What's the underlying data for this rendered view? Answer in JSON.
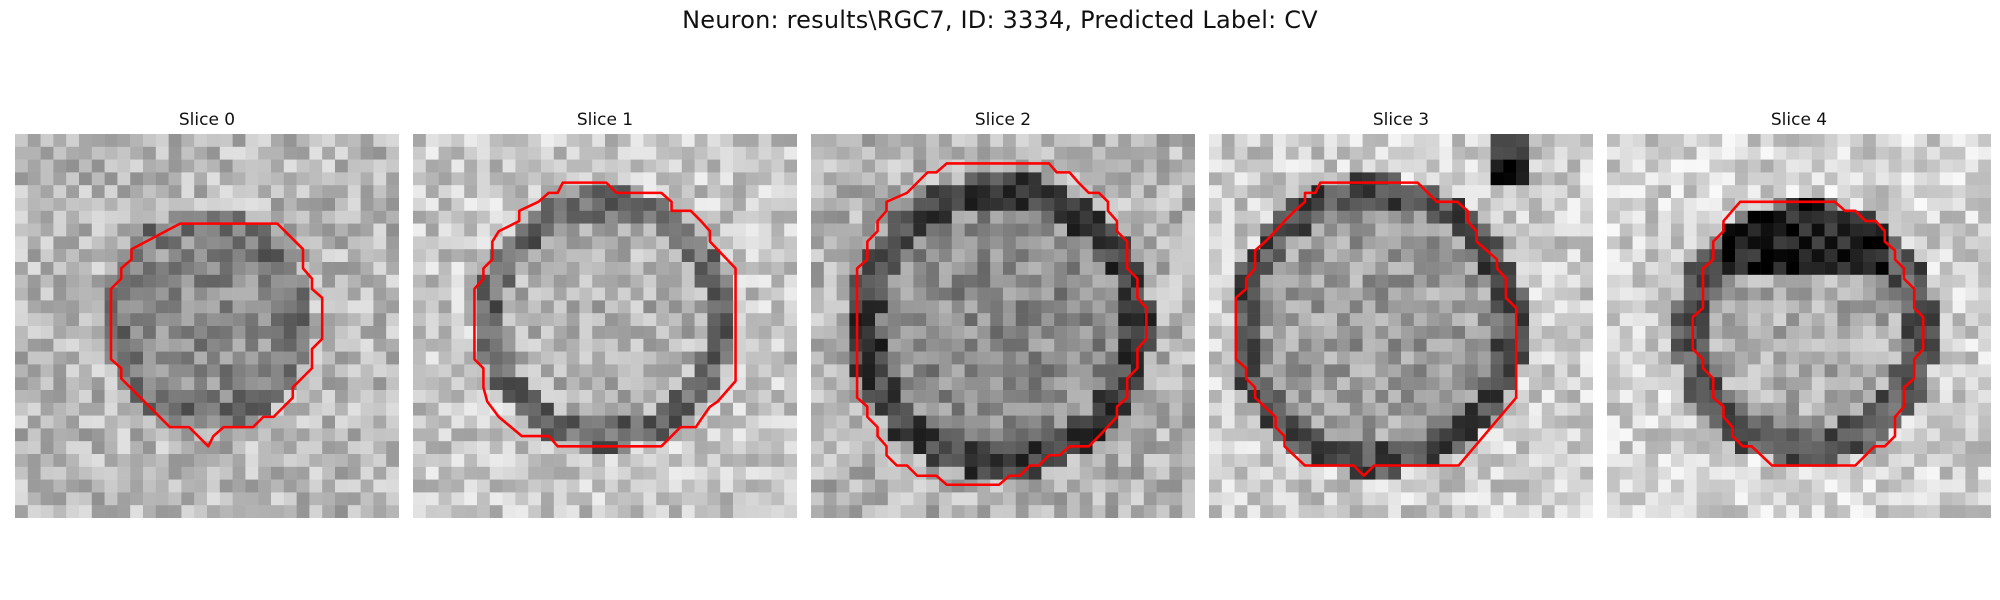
{
  "figure": {
    "title": "Neuron: results\\RGC7, ID: 3334, Predicted Label: CV"
  },
  "outline_color": "#ff0000",
  "slices": [
    {
      "label": "Slice 0",
      "outline": [
        [
          12.9,
          7
        ],
        [
          20.5,
          7
        ],
        [
          22.5,
          9
        ],
        [
          22.5,
          10.5
        ],
        [
          23.2,
          11.3
        ],
        [
          23.2,
          12.1
        ],
        [
          24,
          12.8
        ],
        [
          24,
          16
        ],
        [
          23.2,
          16.8
        ],
        [
          23.2,
          18.3
        ],
        [
          21.7,
          19.8
        ],
        [
          21.7,
          20.6
        ],
        [
          20.2,
          22.1
        ],
        [
          19.4,
          22.1
        ],
        [
          18.6,
          22.9
        ],
        [
          16.3,
          22.9
        ],
        [
          15.5,
          23.6
        ],
        [
          15.1,
          24.4
        ],
        [
          14.3,
          23.6
        ],
        [
          13.6,
          22.9
        ],
        [
          12.1,
          22.9
        ],
        [
          11.3,
          22.1
        ],
        [
          8.3,
          19.1
        ],
        [
          8.3,
          18.3
        ],
        [
          7.5,
          17.6
        ],
        [
          7.5,
          16.8
        ],
        [
          7.5,
          15.3
        ],
        [
          7.5,
          12.1
        ],
        [
          8.3,
          11.3
        ],
        [
          8.3,
          10.5
        ],
        [
          9.1,
          9.8
        ],
        [
          9.1,
          9
        ]
      ]
    },
    {
      "label": "Slice 1",
      "outline": [
        [
          11.3,
          4.6
        ],
        [
          11.7,
          3.8
        ],
        [
          15.1,
          3.8
        ],
        [
          15.9,
          4.6
        ],
        [
          19.4,
          4.6
        ],
        [
          20.2,
          5.3
        ],
        [
          20.2,
          6
        ],
        [
          21.7,
          6
        ],
        [
          22.5,
          6.8
        ],
        [
          23.2,
          7.6
        ],
        [
          23.2,
          8.4
        ],
        [
          25.2,
          10.5
        ],
        [
          25.2,
          19.3
        ],
        [
          23.8,
          20.9
        ],
        [
          23.2,
          21.3
        ],
        [
          22.5,
          22.3
        ],
        [
          22.1,
          22.9
        ],
        [
          20.9,
          22.9
        ],
        [
          20.2,
          23.6
        ],
        [
          19.4,
          24.4
        ],
        [
          17.2,
          24.4
        ],
        [
          15.9,
          24.4
        ],
        [
          11.3,
          24.4
        ],
        [
          10.6,
          23.6
        ],
        [
          8.5,
          23.6
        ],
        [
          6.7,
          22.1
        ],
        [
          5.8,
          20.9
        ],
        [
          5.5,
          19.8
        ],
        [
          5.5,
          18.3
        ],
        [
          4.8,
          17.6
        ],
        [
          4.8,
          16
        ],
        [
          4.8,
          12.1
        ],
        [
          5.5,
          11.3
        ],
        [
          5.5,
          10.5
        ],
        [
          6.2,
          9.8
        ],
        [
          6.2,
          8.4
        ],
        [
          6.7,
          7.6
        ],
        [
          8.3,
          6.8
        ],
        [
          8.3,
          6
        ],
        [
          9.8,
          5.3
        ],
        [
          10.6,
          4.6
        ]
      ]
    },
    {
      "label": "Slice 2",
      "outline": [
        [
          10.6,
          2.3
        ],
        [
          18.6,
          2.3
        ],
        [
          19.2,
          3
        ],
        [
          20.2,
          3
        ],
        [
          20.9,
          3.8
        ],
        [
          21.7,
          4.6
        ],
        [
          22.5,
          4.6
        ],
        [
          23.2,
          5.3
        ],
        [
          23.2,
          6
        ],
        [
          23.9,
          6.8
        ],
        [
          23.9,
          7.6
        ],
        [
          24.7,
          8.4
        ],
        [
          24.7,
          10.5
        ],
        [
          25.5,
          11.3
        ],
        [
          25.5,
          12.8
        ],
        [
          26.2,
          13.6
        ],
        [
          26.2,
          16
        ],
        [
          25.5,
          16.8
        ],
        [
          25.5,
          18.3
        ],
        [
          24.7,
          19.1
        ],
        [
          24.7,
          20.6
        ],
        [
          23.9,
          21.3
        ],
        [
          23.9,
          22.1
        ],
        [
          22.5,
          23.6
        ],
        [
          21.7,
          24.4
        ],
        [
          20.2,
          24.4
        ],
        [
          19.4,
          25.1
        ],
        [
          18.6,
          25.1
        ],
        [
          17.8,
          25.9
        ],
        [
          17.1,
          25.9
        ],
        [
          16.3,
          26.7
        ],
        [
          15.5,
          26.7
        ],
        [
          14.7,
          27.4
        ],
        [
          10.6,
          27.4
        ],
        [
          9.8,
          26.7
        ],
        [
          8.3,
          26.7
        ],
        [
          7.5,
          25.9
        ],
        [
          6.7,
          25.9
        ],
        [
          5.9,
          25.1
        ],
        [
          5.9,
          24.4
        ],
        [
          5.2,
          23.6
        ],
        [
          5.2,
          22.9
        ],
        [
          4.4,
          22.1
        ],
        [
          4.4,
          21.3
        ],
        [
          3.6,
          20.6
        ],
        [
          3.6,
          19.1
        ],
        [
          3.6,
          16
        ],
        [
          3.6,
          10.5
        ],
        [
          4.4,
          9.8
        ],
        [
          4.4,
          8.4
        ],
        [
          5.2,
          7.6
        ],
        [
          5.2,
          6.8
        ],
        [
          5.9,
          6
        ],
        [
          5.9,
          5.3
        ],
        [
          7.5,
          4.6
        ],
        [
          8.3,
          3.8
        ],
        [
          9.1,
          3
        ],
        [
          9.8,
          3
        ]
      ]
    },
    {
      "label": "Slice 3",
      "outline": [
        [
          7.5,
          5.3
        ],
        [
          7.5,
          4.6
        ],
        [
          8.3,
          4.6
        ],
        [
          8.7,
          3.8
        ],
        [
          9.1,
          3.8
        ],
        [
          9.1,
          3.8
        ],
        [
          16.3,
          3.8
        ],
        [
          17.8,
          5.3
        ],
        [
          19.4,
          5.3
        ],
        [
          20.2,
          6
        ],
        [
          20.2,
          6.8
        ],
        [
          20.9,
          7.6
        ],
        [
          20.9,
          8.4
        ],
        [
          21.7,
          9.1
        ],
        [
          22.5,
          9.8
        ],
        [
          22.5,
          10.5
        ],
        [
          23.2,
          11.3
        ],
        [
          23.2,
          12.8
        ],
        [
          24,
          13.6
        ],
        [
          24,
          20.6
        ],
        [
          19.5,
          25.9
        ],
        [
          18.6,
          25.9
        ],
        [
          12.9,
          25.9
        ],
        [
          12.1,
          26.7
        ],
        [
          11.3,
          25.9
        ],
        [
          7.5,
          25.9
        ],
        [
          5.9,
          24.4
        ],
        [
          5.9,
          23.6
        ],
        [
          5.2,
          22.9
        ],
        [
          5.2,
          22.1
        ],
        [
          3.6,
          20.6
        ],
        [
          3.6,
          19.8
        ],
        [
          2.9,
          19.1
        ],
        [
          2.9,
          18.3
        ],
        [
          2.1,
          17.6
        ],
        [
          2.1,
          12.8
        ],
        [
          2.9,
          12.1
        ],
        [
          2.9,
          11.3
        ],
        [
          3.6,
          10.5
        ],
        [
          3.6,
          9.1
        ],
        [
          4.4,
          8.4
        ],
        [
          5.2,
          7.6
        ],
        [
          5.9,
          6.8
        ],
        [
          6.7,
          6
        ]
      ]
    },
    {
      "label": "Slice 4",
      "outline": [
        [
          10.4,
          5.3
        ],
        [
          11.3,
          5.3
        ],
        [
          12.1,
          5.3
        ],
        [
          12.9,
          5.3
        ],
        [
          17.8,
          5.3
        ],
        [
          18.6,
          6
        ],
        [
          19.4,
          6
        ],
        [
          20.2,
          6.8
        ],
        [
          21,
          6.8
        ],
        [
          21.7,
          7.6
        ],
        [
          21.7,
          8.4
        ],
        [
          22.5,
          9.1
        ],
        [
          22.5,
          9.8
        ],
        [
          23.2,
          10.5
        ],
        [
          23.2,
          11.3
        ],
        [
          24,
          12.1
        ],
        [
          24,
          13.6
        ],
        [
          24.7,
          14.3
        ],
        [
          24.7,
          16.8
        ],
        [
          24,
          17.6
        ],
        [
          24,
          19.1
        ],
        [
          23.2,
          19.8
        ],
        [
          23.2,
          21.3
        ],
        [
          22.5,
          22.1
        ],
        [
          22.5,
          23.6
        ],
        [
          21.7,
          24.4
        ],
        [
          20.9,
          24.4
        ],
        [
          19.4,
          25.9
        ],
        [
          12.9,
          25.9
        ],
        [
          11.3,
          24.4
        ],
        [
          10.6,
          24.4
        ],
        [
          9.8,
          23.6
        ],
        [
          9.8,
          22.9
        ],
        [
          9.1,
          22.1
        ],
        [
          9.1,
          21.3
        ],
        [
          8.3,
          20.6
        ],
        [
          8.3,
          19.1
        ],
        [
          7.5,
          18.3
        ],
        [
          7.5,
          17.6
        ],
        [
          6.7,
          16.8
        ],
        [
          6.7,
          14.3
        ],
        [
          7.5,
          13.6
        ],
        [
          7.5,
          12.1
        ],
        [
          7.5,
          10.5
        ],
        [
          7.5,
          10.5
        ],
        [
          8.3,
          9.8
        ],
        [
          8.3,
          8.4
        ],
        [
          9.1,
          7.6
        ],
        [
          9.1,
          6.8
        ]
      ]
    }
  ]
}
